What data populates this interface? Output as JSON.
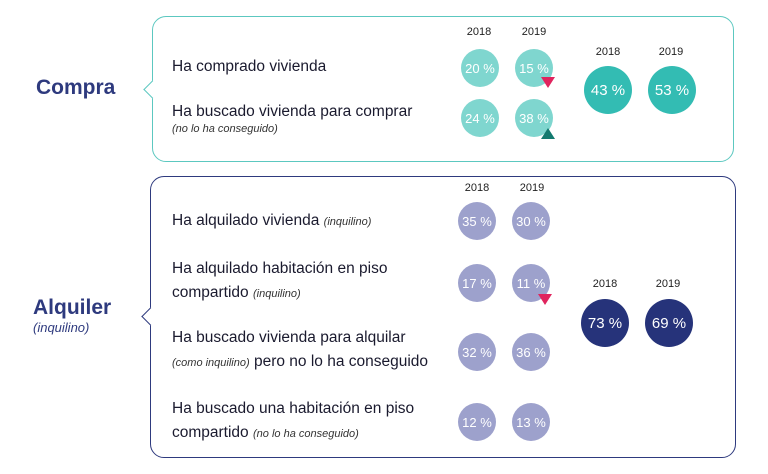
{
  "compra": {
    "title": "Compra",
    "years": [
      "2018",
      "2019"
    ],
    "total_years": [
      "2018",
      "2019"
    ],
    "rows": [
      {
        "label": "Ha comprado vivienda",
        "note": "",
        "v2018": "20 %",
        "v2019": "15 %",
        "trend": "down"
      },
      {
        "label": "Ha buscado vivienda para comprar",
        "note": "(no lo ha conseguido)",
        "v2018": "24 %",
        "v2019": "38 %",
        "trend": "up"
      }
    ],
    "totals": {
      "t2018": "43 %",
      "t2019": "53 %"
    }
  },
  "alquiler": {
    "title": "Alquiler",
    "subtitle": "(inquilino)",
    "years": [
      "2018",
      "2019"
    ],
    "total_years": [
      "2018",
      "2019"
    ],
    "rows": [
      {
        "line1": "Ha alquilado vivienda",
        "note": "(inquilino)",
        "line2": "",
        "v2018": "35 %",
        "v2019": "30 %",
        "trend": ""
      },
      {
        "line1": "Ha alquilado habitación en piso",
        "line2": "compartido",
        "note": "(inquilino)",
        "v2018": "17 %",
        "v2019": "11 %",
        "trend": "down"
      },
      {
        "line1": "Ha buscado vivienda para alquilar",
        "note": "(como inquilino)",
        "line2": "pero no lo ha conseguido",
        "v2018": "32 %",
        "v2019": "36 %",
        "trend": ""
      },
      {
        "line1": "Ha buscado una habitación en piso",
        "line2": "compartido",
        "note": "(no lo ha conseguido)",
        "v2018": "12 %",
        "v2019": "13 %",
        "trend": ""
      }
    ],
    "totals": {
      "t2018": "73 %",
      "t2019": "69 %"
    }
  },
  "colors": {
    "compra_border": "#5cc8c0",
    "alquiler_border": "#2e3a7e",
    "trend_down": "#e0245e",
    "trend_up": "#137a6f"
  }
}
